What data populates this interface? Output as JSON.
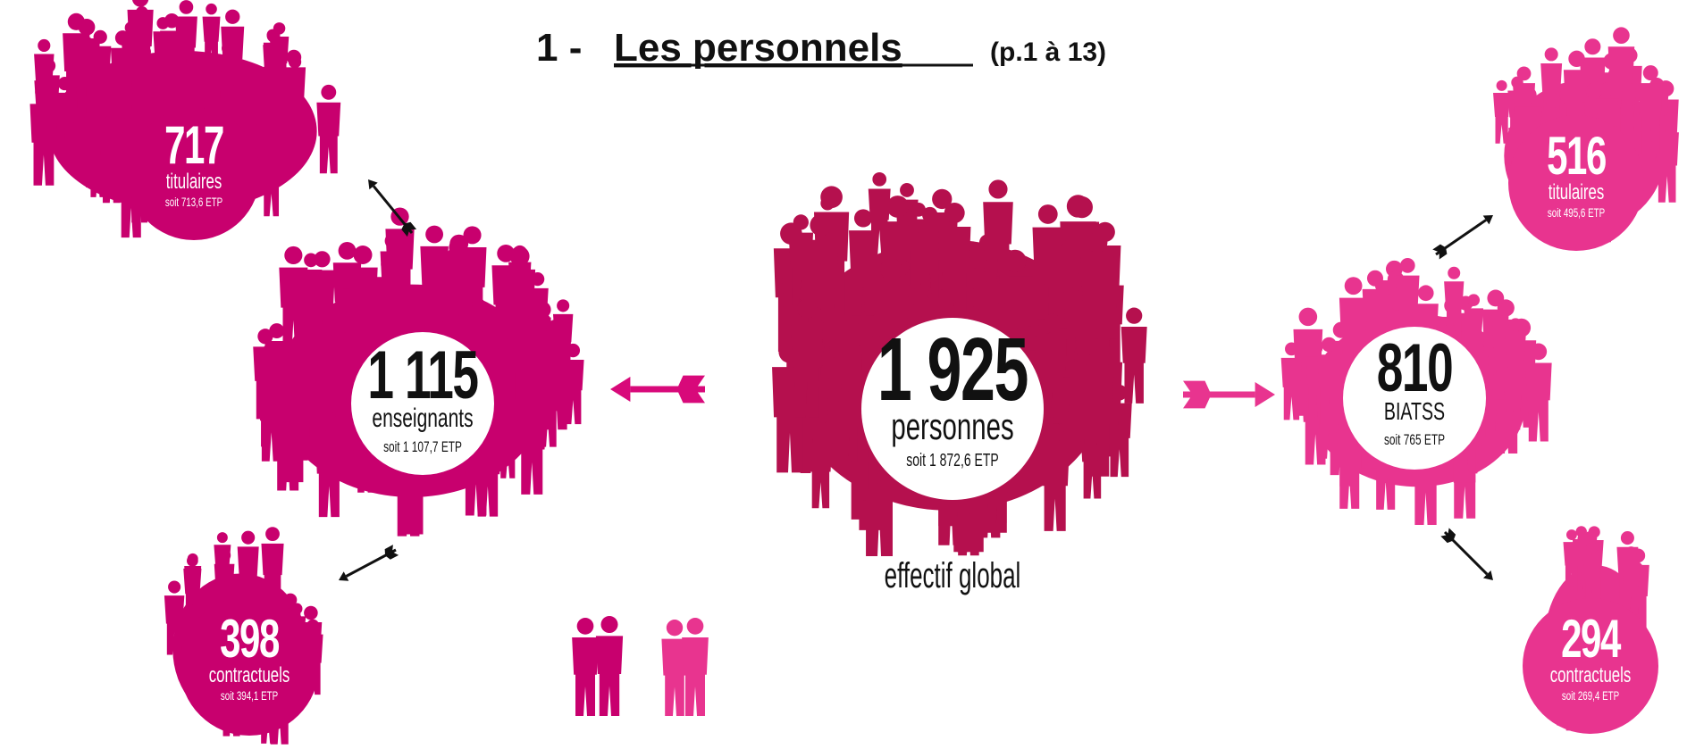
{
  "header": {
    "number": "1 -",
    "title": "Les personnels",
    "pages": "(p.1 à 13)"
  },
  "nodes": [
    {
      "value": "1 925",
      "label": "personnes",
      "etp": "soit 1 872,6 ETP",
      "caption": "effectif global"
    },
    {
      "value": "1 115",
      "label": "enseignants",
      "etp": "soit 1 107,7 ETP"
    },
    {
      "value": "717",
      "label": "titulaires",
      "etp": "soit 713,6 ETP"
    },
    {
      "value": "398",
      "label": "contractuels",
      "etp": "soit 394,1 ETP"
    },
    {
      "value": "810",
      "label": "BIATSS",
      "etp": "soit 765 ETP"
    },
    {
      "value": "516",
      "label": "titulaires",
      "etp": "soit 495,6 ETP"
    },
    {
      "value": "294",
      "label": "contractuels",
      "etp": "soit 269,4 ETP"
    }
  ]
}
